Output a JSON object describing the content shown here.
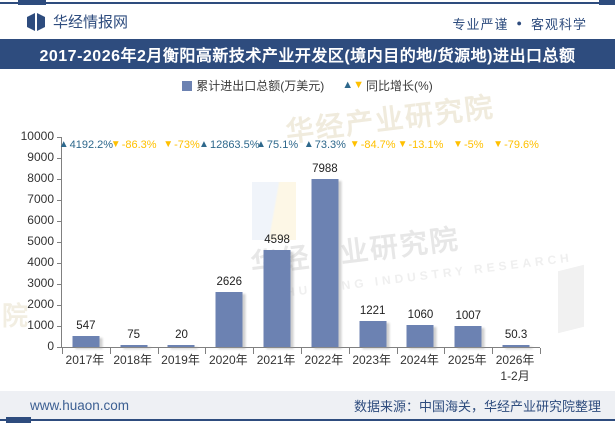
{
  "header": {
    "brand": "华经情报网",
    "tagline": {
      "left": "专业严谨",
      "bullet": "●",
      "right": "客观科学"
    }
  },
  "title": "2017-2026年2月衡阳高新技术产业开发区(境内目的地/货源地)进出口总额",
  "legend": {
    "bar_label": "累计进出口总额(万美元)",
    "growth_label": "同比增长(%)"
  },
  "icons": {
    "up_triangle": "▲",
    "down_triangle": "▼"
  },
  "chart_data": {
    "type": "bar",
    "categories": [
      "2017年",
      "2018年",
      "2019年",
      "2020年",
      "2021年",
      "2022年",
      "2023年",
      "2024年",
      "2025年",
      "2026年\n1-2月"
    ],
    "series": [
      {
        "name": "累计进出口总额(万美元)",
        "type": "bar",
        "values": [
          547,
          75,
          20,
          2626,
          4598,
          7988,
          1221,
          1060,
          1007,
          50.3
        ]
      },
      {
        "name": "同比增长(%)",
        "type": "marker-label",
        "values": [
          4192.2,
          -86.3,
          -73,
          12863.5,
          75.1,
          73.3,
          -84.7,
          -13.1,
          -5,
          -79.6
        ],
        "labels": [
          "4192.2%",
          "-86.3%",
          "-73%",
          "12863.5%",
          "75.1%",
          "73.3%",
          "-84.7%",
          "-13.1%",
          "-5%",
          "-79.6%"
        ]
      }
    ],
    "bar_value_labels": [
      "547",
      "75",
      "20",
      "2626",
      "4598",
      "7988",
      "1221",
      "1060",
      "1007",
      "50.3"
    ],
    "ylim": [
      0,
      10000
    ],
    "yticks": [
      0,
      1000,
      2000,
      3000,
      4000,
      5000,
      6000,
      7000,
      8000,
      9000,
      10000
    ],
    "grid": false,
    "legend_position": "top"
  },
  "watermark": {
    "text": "华经产业研究院",
    "sub": "HUAJING INDUSTRY RESEARCH",
    "partial": "院"
  },
  "footer": {
    "site": "www.huaon.com",
    "source": "数据来源：中国海关，华经产业研究院整理"
  },
  "colors": {
    "navy": "#2e4c7e",
    "bar": "#6c82b2",
    "positive": "#2e688c",
    "negative": "#ffc000",
    "footer_bg": "#eef0f4",
    "link": "#3c5f92"
  }
}
